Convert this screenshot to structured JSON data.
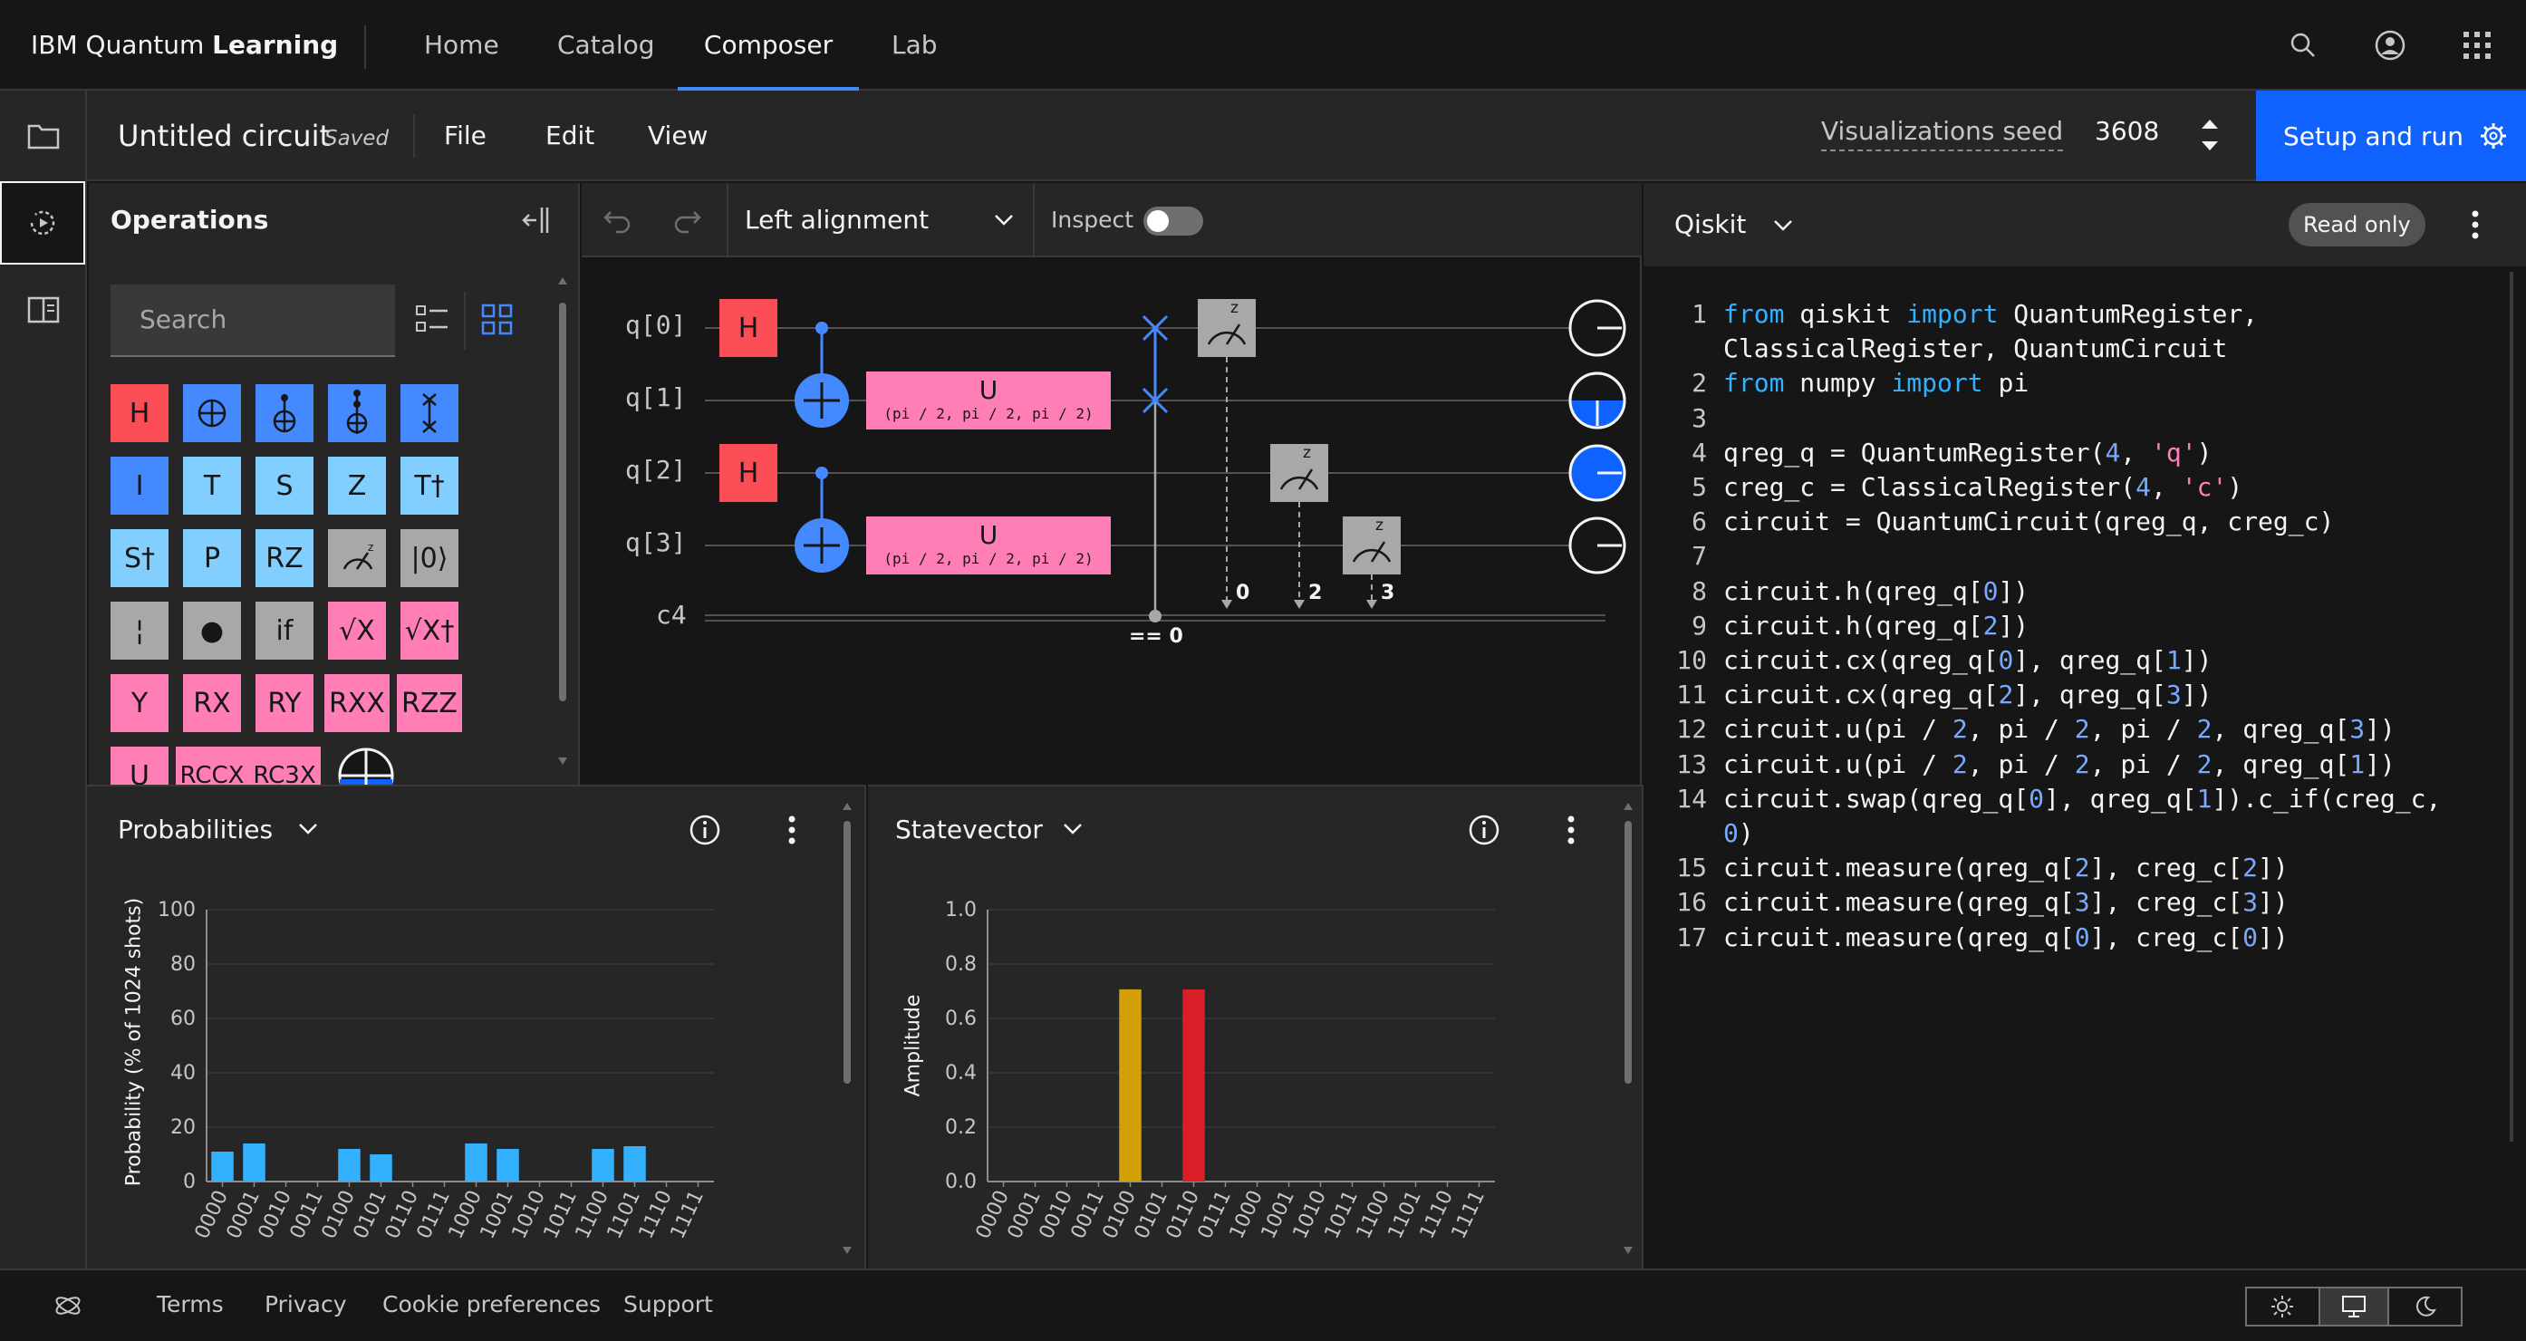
{
  "header": {
    "brand_prefix": "IBM Quantum",
    "brand_bold": "Learning",
    "nav": [
      "Home",
      "Catalog",
      "Composer",
      "Lab"
    ],
    "active_nav": "Composer"
  },
  "toolbar": {
    "circuit_name": "Untitled circuit",
    "saved_status": "Saved",
    "menus": [
      "File",
      "Edit",
      "View"
    ],
    "seed_label": "Visualizations seed",
    "seed_value": "3608",
    "run_button": "Setup and run"
  },
  "operations": {
    "title": "Operations",
    "search_placeholder": "Search",
    "gates": [
      {
        "label": "H",
        "color": "#fa4d56"
      },
      {
        "label": "",
        "icon": "cnot-icon",
        "color": "#4589ff"
      },
      {
        "label": "",
        "icon": "toffoli-icon",
        "color": "#4589ff"
      },
      {
        "label": "",
        "icon": "ccx-icon",
        "color": "#4589ff"
      },
      {
        "label": "",
        "icon": "swap-icon",
        "color": "#4589ff"
      },
      {
        "label": "I",
        "color": "#4589ff"
      },
      {
        "label": "T",
        "color": "#82cfff"
      },
      {
        "label": "S",
        "color": "#82cfff"
      },
      {
        "label": "Z",
        "color": "#82cfff"
      },
      {
        "label": "T†",
        "color": "#82cfff"
      },
      {
        "label": "S†",
        "color": "#82cfff"
      },
      {
        "label": "P",
        "color": "#82cfff"
      },
      {
        "label": "RZ",
        "color": "#82cfff"
      },
      {
        "label": "",
        "icon": "measure-icon",
        "color": "#a8a8a8"
      },
      {
        "label": "|0⟩",
        "color": "#a8a8a8"
      },
      {
        "label": "¦",
        "color": "#a8a8a8"
      },
      {
        "label": "●",
        "color": "#a8a8a8"
      },
      {
        "label": "if",
        "color": "#a8a8a8"
      },
      {
        "label": "√X",
        "color": "#ff7eb6"
      },
      {
        "label": "√X†",
        "color": "#ff7eb6"
      },
      {
        "label": "Y",
        "color": "#ff7eb6"
      },
      {
        "label": "RX",
        "color": "#ff7eb6"
      },
      {
        "label": "RY",
        "color": "#ff7eb6"
      },
      {
        "label": "RXX",
        "color": "#ff7eb6"
      },
      {
        "label": "RZZ",
        "color": "#ff7eb6"
      },
      {
        "label": "U",
        "color": "#ff7eb6"
      },
      {
        "label": "RCCX",
        "color": "#ff7eb6"
      },
      {
        "label": "RC3X",
        "color": "#ff7eb6"
      }
    ]
  },
  "circuit_toolbar": {
    "alignment": "Left alignment",
    "inspect_label": "Inspect"
  },
  "circuit": {
    "qubits": [
      "q[0]",
      "q[1]",
      "q[2]",
      "q[3]"
    ],
    "classical": "c4",
    "u_label": "U",
    "u_params": "(pi / 2, pi / 2, pi / 2)",
    "h_label": "H",
    "condition_label": "== 0",
    "measure_bits": [
      "0",
      "2",
      "3"
    ],
    "measure_axis": "z"
  },
  "probabilities": {
    "title": "Probabilities",
    "ylabel": "Probability (% of 1024 shots)"
  },
  "statevector": {
    "title": "Statevector",
    "ylabel": "Amplitude"
  },
  "chart_data": [
    {
      "type": "bar",
      "title": "Probabilities",
      "ylabel": "Probability (% of 1024 shots)",
      "categories": [
        "0000",
        "0001",
        "0010",
        "0011",
        "0100",
        "0101",
        "0110",
        "0111",
        "1000",
        "1001",
        "1010",
        "1011",
        "1100",
        "1101",
        "1110",
        "1111"
      ],
      "values": [
        11,
        14,
        0,
        0,
        12,
        10,
        0,
        0,
        14,
        12,
        0,
        0,
        12,
        13,
        0,
        0
      ],
      "ylim": [
        0,
        100
      ],
      "yticks": [
        0,
        20,
        40,
        60,
        80,
        100
      ],
      "color": "#33b1ff"
    },
    {
      "type": "bar",
      "title": "Statevector",
      "ylabel": "Amplitude",
      "categories": [
        "0000",
        "0001",
        "0010",
        "0011",
        "0100",
        "0101",
        "0110",
        "0111",
        "1000",
        "1001",
        "1010",
        "1011",
        "1100",
        "1101",
        "1110",
        "1111"
      ],
      "values": [
        0,
        0,
        0,
        0,
        0.707,
        0,
        0.707,
        0,
        0,
        0,
        0,
        0,
        0,
        0,
        0,
        0
      ],
      "colors": {
        "4": "#d2a106",
        "6": "#da1e28"
      },
      "ylim": [
        0,
        1.0
      ],
      "yticks": [
        "0.0",
        "0.2",
        "0.4",
        "0.6",
        "0.8",
        "1.0"
      ]
    }
  ],
  "code_panel": {
    "language": "Qiskit",
    "badge": "Read only"
  },
  "code": [
    {
      "n": "1",
      "tokens": [
        [
          "kw",
          "from"
        ],
        [
          "t",
          " qiskit "
        ],
        [
          "kw",
          "import"
        ],
        [
          "t",
          " QuantumRegister,"
        ]
      ]
    },
    {
      "n": "",
      "tokens": [
        [
          "t",
          "ClassicalRegister, QuantumCircuit"
        ]
      ]
    },
    {
      "n": "2",
      "tokens": [
        [
          "kw",
          "from"
        ],
        [
          "t",
          " numpy "
        ],
        [
          "kw",
          "import"
        ],
        [
          "t",
          " pi"
        ]
      ]
    },
    {
      "n": "3",
      "tokens": []
    },
    {
      "n": "4",
      "tokens": [
        [
          "t",
          "qreg_q = QuantumRegister("
        ],
        [
          "num",
          "4"
        ],
        [
          "t",
          ", "
        ],
        [
          "str",
          "'q'"
        ],
        [
          "t",
          ")"
        ]
      ]
    },
    {
      "n": "5",
      "tokens": [
        [
          "t",
          "creg_c = ClassicalRegister("
        ],
        [
          "num",
          "4"
        ],
        [
          "t",
          ", "
        ],
        [
          "str",
          "'c'"
        ],
        [
          "t",
          ")"
        ]
      ]
    },
    {
      "n": "6",
      "tokens": [
        [
          "t",
          "circuit = QuantumCircuit(qreg_q, creg_c)"
        ]
      ]
    },
    {
      "n": "7",
      "tokens": []
    },
    {
      "n": "8",
      "tokens": [
        [
          "t",
          "circuit.h(qreg_q["
        ],
        [
          "num",
          "0"
        ],
        [
          "t",
          "])"
        ]
      ]
    },
    {
      "n": "9",
      "tokens": [
        [
          "t",
          "circuit.h(qreg_q["
        ],
        [
          "num",
          "2"
        ],
        [
          "t",
          "])"
        ]
      ]
    },
    {
      "n": "10",
      "tokens": [
        [
          "t",
          "circuit.cx(qreg_q["
        ],
        [
          "num",
          "0"
        ],
        [
          "t",
          "], qreg_q["
        ],
        [
          "num",
          "1"
        ],
        [
          "t",
          "])"
        ]
      ]
    },
    {
      "n": "11",
      "tokens": [
        [
          "t",
          "circuit.cx(qreg_q["
        ],
        [
          "num",
          "2"
        ],
        [
          "t",
          "], qreg_q["
        ],
        [
          "num",
          "3"
        ],
        [
          "t",
          "])"
        ]
      ]
    },
    {
      "n": "12",
      "tokens": [
        [
          "t",
          "circuit.u(pi / "
        ],
        [
          "num",
          "2"
        ],
        [
          "t",
          ", pi / "
        ],
        [
          "num",
          "2"
        ],
        [
          "t",
          ", pi / "
        ],
        [
          "num",
          "2"
        ],
        [
          "t",
          ", qreg_q["
        ],
        [
          "num",
          "3"
        ],
        [
          "t",
          "])"
        ]
      ]
    },
    {
      "n": "13",
      "tokens": [
        [
          "t",
          "circuit.u(pi / "
        ],
        [
          "num",
          "2"
        ],
        [
          "t",
          ", pi / "
        ],
        [
          "num",
          "2"
        ],
        [
          "t",
          ", pi / "
        ],
        [
          "num",
          "2"
        ],
        [
          "t",
          ", qreg_q["
        ],
        [
          "num",
          "1"
        ],
        [
          "t",
          "])"
        ]
      ]
    },
    {
      "n": "14",
      "tokens": [
        [
          "t",
          "circuit.swap(qreg_q["
        ],
        [
          "num",
          "0"
        ],
        [
          "t",
          "], qreg_q["
        ],
        [
          "num",
          "1"
        ],
        [
          "t",
          "]).c_if(creg_c,"
        ]
      ]
    },
    {
      "n": "",
      "tokens": [
        [
          "num",
          "0"
        ],
        [
          "t",
          ")"
        ]
      ]
    },
    {
      "n": "15",
      "tokens": [
        [
          "t",
          "circuit.measure(qreg_q["
        ],
        [
          "num",
          "2"
        ],
        [
          "t",
          "], creg_c["
        ],
        [
          "num",
          "2"
        ],
        [
          "t",
          "])"
        ]
      ]
    },
    {
      "n": "16",
      "tokens": [
        [
          "t",
          "circuit.measure(qreg_q["
        ],
        [
          "num",
          "3"
        ],
        [
          "t",
          "], creg_c["
        ],
        [
          "num",
          "3"
        ],
        [
          "t",
          "])"
        ]
      ]
    },
    {
      "n": "17",
      "tokens": [
        [
          "t",
          "circuit.measure(qreg_q["
        ],
        [
          "num",
          "0"
        ],
        [
          "t",
          "], creg_c["
        ],
        [
          "num",
          "0"
        ],
        [
          "t",
          "])"
        ]
      ]
    }
  ],
  "footer": {
    "links": [
      "Terms",
      "Privacy",
      "Cookie preferences",
      "Support"
    ]
  },
  "icons": {
    "search": "search-icon",
    "user": "user-icon",
    "apps": "app-switcher-icon",
    "folder": "folder-icon",
    "run-history": "history-icon",
    "panel": "side-panel-icon"
  }
}
